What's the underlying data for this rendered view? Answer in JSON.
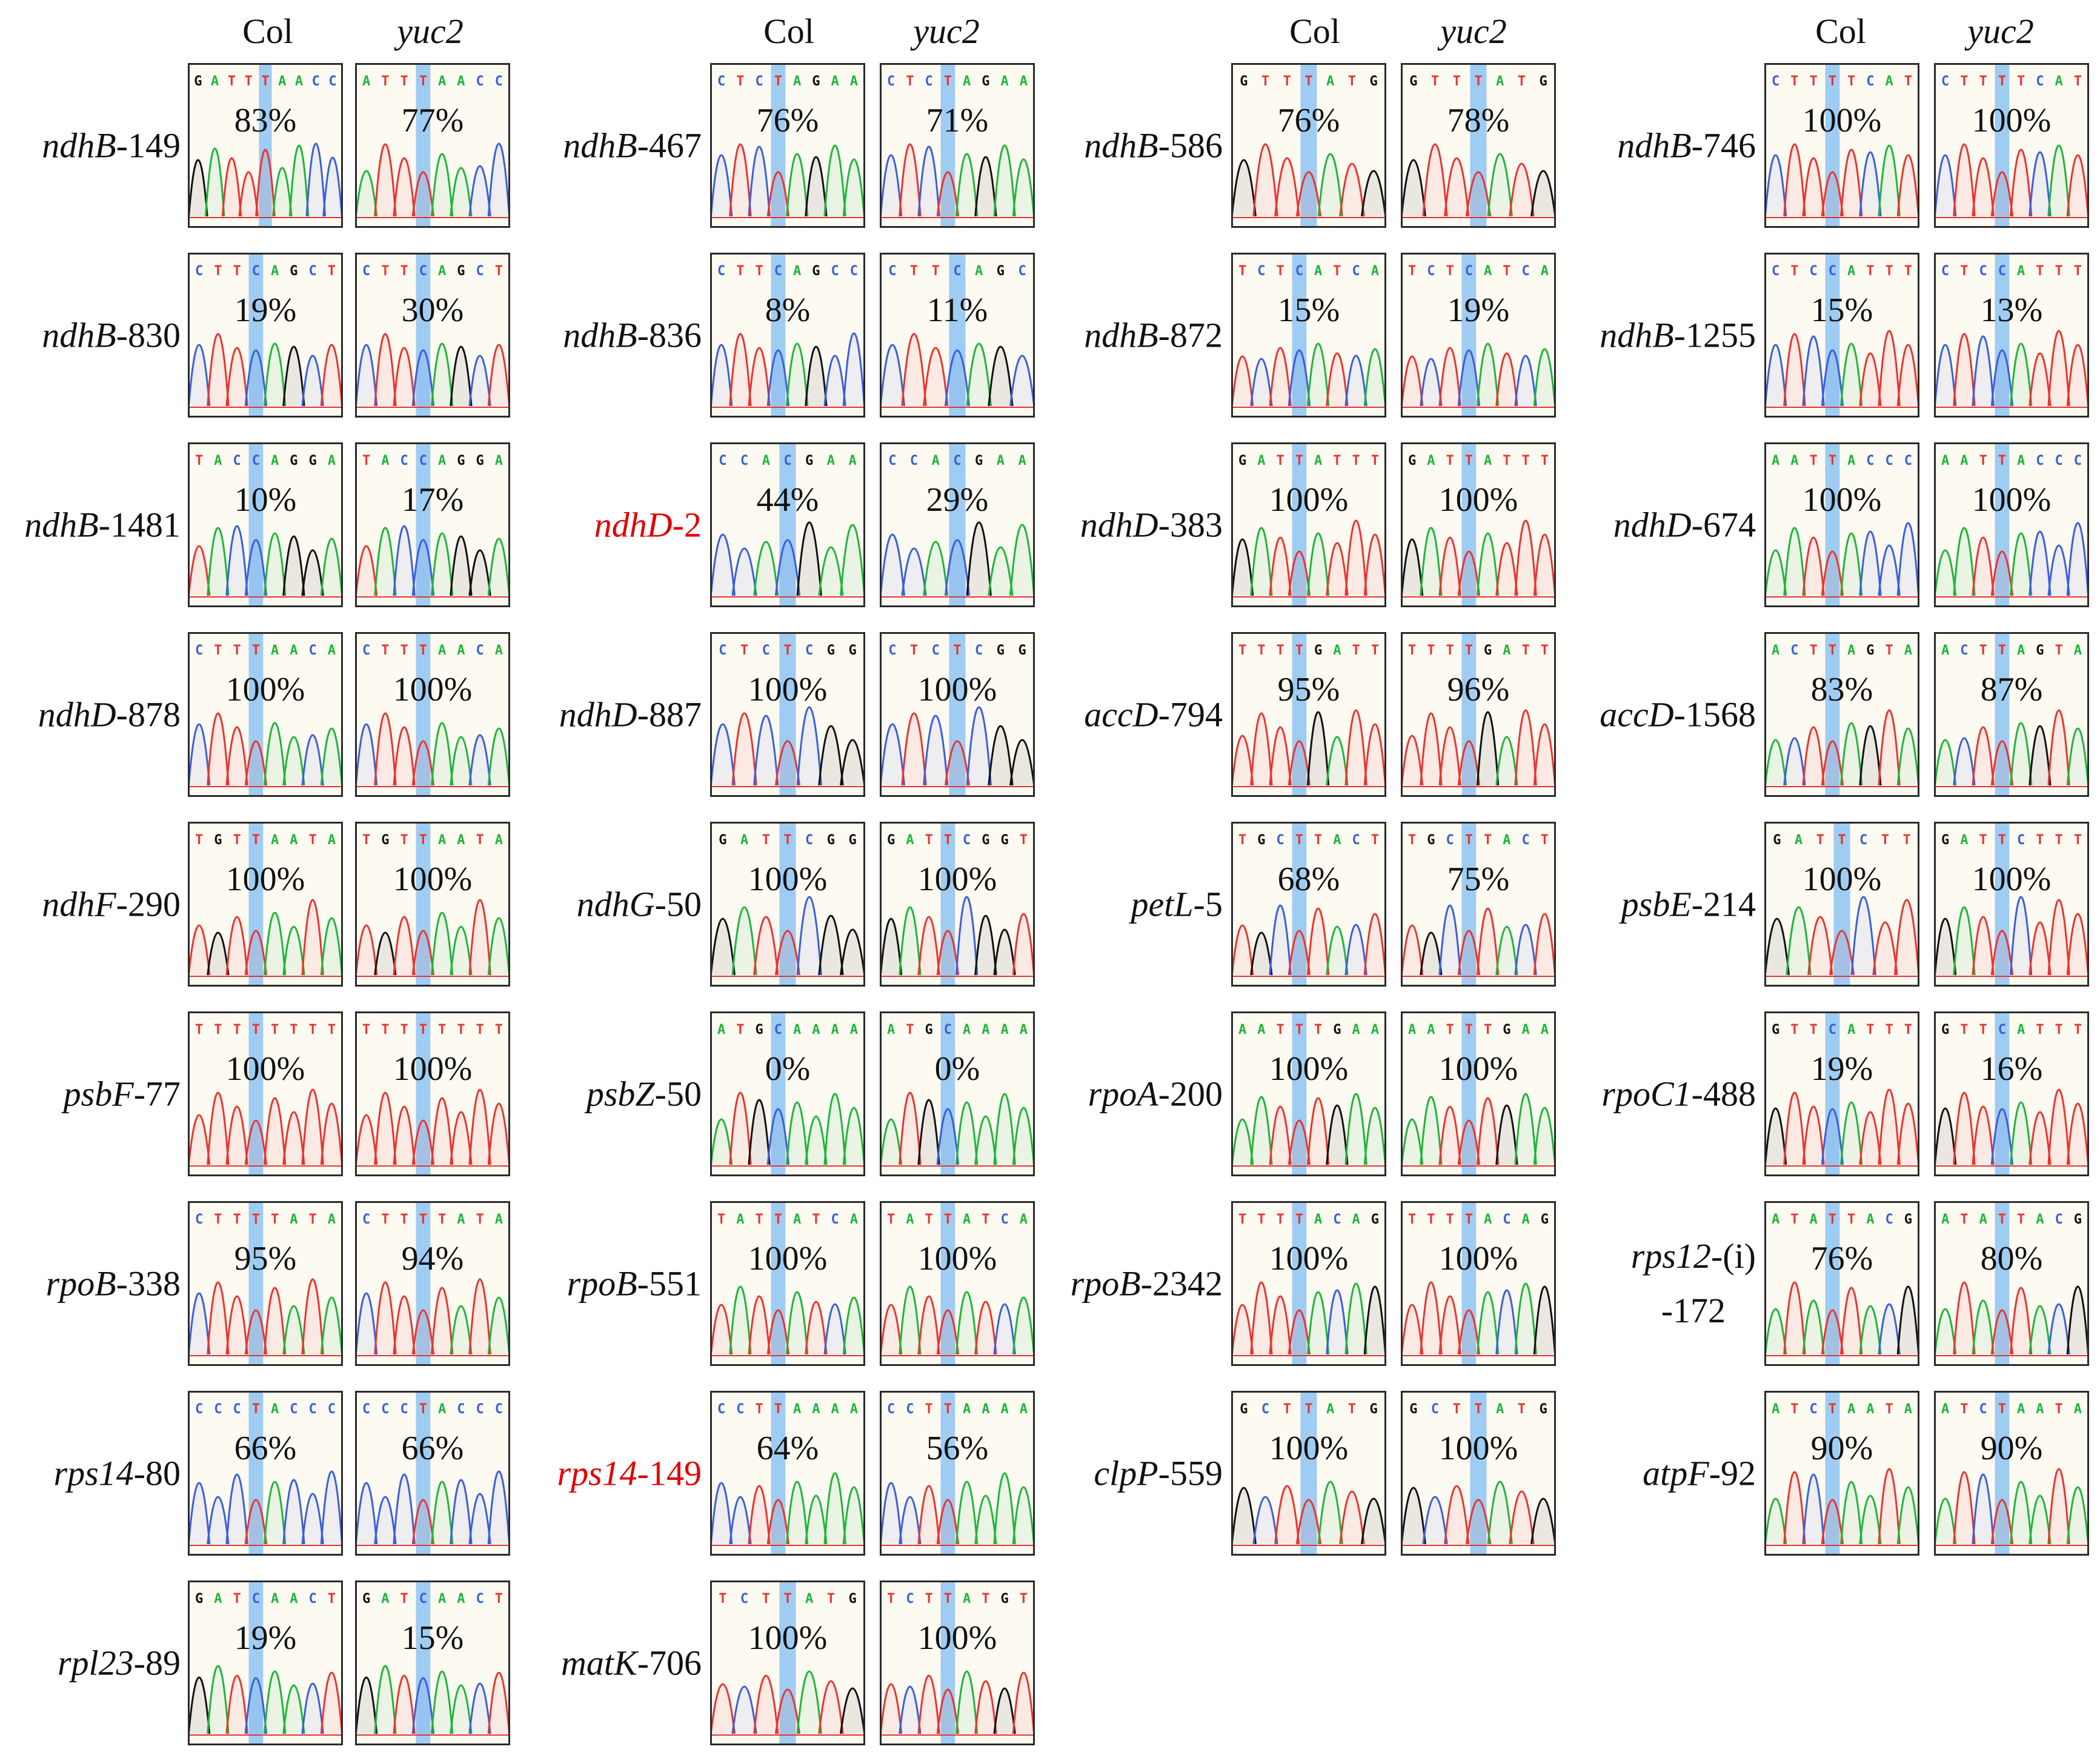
{
  "colors": {
    "A": "#1fb53a",
    "C": "#3a5fdc",
    "G": "#111111",
    "T": "#e8352f",
    "highlight": "#8ec3f2",
    "label_red": "#e00000"
  },
  "headers": {
    "col": "Col",
    "mutant": "yuc2"
  },
  "columns": [
    {
      "rows": [
        {
          "gene": "ndhB",
          "pos": "-149",
          "red": false,
          "col": {
            "seq": "GATTTAACC",
            "pct": "83%"
          },
          "mut": {
            "seq": "ATTTAACC",
            "pct": "77%"
          }
        },
        {
          "gene": "ndhB",
          "pos": "-830",
          "red": false,
          "col": {
            "seq": "CTTCAGCT",
            "pct": "19%"
          },
          "mut": {
            "seq": "CTTCAGCT",
            "pct": "30%"
          }
        },
        {
          "gene": "ndhB",
          "pos": "-1481",
          "red": false,
          "col": {
            "seq": "TACCAGGA",
            "pct": "10%"
          },
          "mut": {
            "seq": "TACCAGGA",
            "pct": "17%"
          }
        },
        {
          "gene": "ndhD",
          "pos": "-878",
          "red": false,
          "col": {
            "seq": "CTTTAACA",
            "pct": "100%"
          },
          "mut": {
            "seq": "CTTTAACA",
            "pct": "100%"
          }
        },
        {
          "gene": "ndhF",
          "pos": "-290",
          "red": false,
          "col": {
            "seq": "TGTTAATA",
            "pct": "100%"
          },
          "mut": {
            "seq": "TGTTAATA",
            "pct": "100%"
          }
        },
        {
          "gene": "psbF",
          "pos": "-77",
          "red": false,
          "col": {
            "seq": "TTTTTTTT",
            "pct": "100%"
          },
          "mut": {
            "seq": "TTTTTTTT",
            "pct": "100%"
          }
        },
        {
          "gene": "rpoB",
          "pos": "-338",
          "red": false,
          "col": {
            "seq": "CTTTTATA",
            "pct": "95%"
          },
          "mut": {
            "seq": "CTTTTATA",
            "pct": "94%"
          }
        },
        {
          "gene": "rps14",
          "pos": "-80",
          "red": false,
          "col": {
            "seq": "CCCTACCC",
            "pct": "66%"
          },
          "mut": {
            "seq": "CCCTACCC",
            "pct": "66%"
          }
        },
        {
          "gene": "rpl23",
          "pos": "-89",
          "red": false,
          "col": {
            "seq": "GATCAACT",
            "pct": "19%"
          },
          "mut": {
            "seq": "GATCAACT",
            "pct": "15%"
          }
        }
      ]
    },
    {
      "rows": [
        {
          "gene": "ndhB",
          "pos": "-467",
          "red": false,
          "col": {
            "seq": "CTCTAGAA",
            "pct": "76%"
          },
          "mut": {
            "seq": "CTCTAGAA",
            "pct": "71%"
          }
        },
        {
          "gene": "ndhB",
          "pos": "-836",
          "red": false,
          "col": {
            "seq": "CTTCAGCC",
            "pct": "8%"
          },
          "mut": {
            "seq": "CTTCAGC",
            "pct": "11%"
          }
        },
        {
          "gene": "ndhD",
          "pos": "-2",
          "red": true,
          "col": {
            "seq": "CCACGAA",
            "pct": "44%"
          },
          "mut": {
            "seq": "CCACGAA",
            "pct": "29%"
          }
        },
        {
          "gene": "ndhD",
          "pos": "-887",
          "red": false,
          "col": {
            "seq": "CTCTCGG",
            "pct": "100%"
          },
          "mut": {
            "seq": "CTCTCGG",
            "pct": "100%"
          }
        },
        {
          "gene": "ndhG",
          "pos": "-50",
          "red": false,
          "col": {
            "seq": "GATTCGG",
            "pct": "100%"
          },
          "mut": {
            "seq": "GATTCGGT",
            "pct": "100%"
          }
        },
        {
          "gene": "psbZ",
          "pos": "-50",
          "red": false,
          "col": {
            "seq": "ATGCAAAA",
            "pct": "0%"
          },
          "mut": {
            "seq": "ATGCAAAA",
            "pct": "0%"
          }
        },
        {
          "gene": "rpoB",
          "pos": "-551",
          "red": false,
          "col": {
            "seq": "TATTATCA",
            "pct": "100%"
          },
          "mut": {
            "seq": "TATTATCA",
            "pct": "100%"
          }
        },
        {
          "gene": "rps14",
          "pos": "-149",
          "red": true,
          "col": {
            "seq": "CCTTAAAA",
            "pct": "64%"
          },
          "mut": {
            "seq": "CCTTAAAA",
            "pct": "56%"
          }
        },
        {
          "gene": "matK",
          "pos": "-706",
          "red": false,
          "col": {
            "seq": "TCTTATG",
            "pct": "100%"
          },
          "mut": {
            "seq": "TCTTATGT",
            "pct": "100%"
          }
        }
      ]
    },
    {
      "rows": [
        {
          "gene": "ndhB",
          "pos": "-586",
          "red": false,
          "col": {
            "seq": "GTTTATG",
            "pct": "76%"
          },
          "mut": {
            "seq": "GTTTATG",
            "pct": "78%"
          }
        },
        {
          "gene": "ndhB",
          "pos": "-872",
          "red": false,
          "col": {
            "seq": "TCTCATCA",
            "pct": "15%"
          },
          "mut": {
            "seq": "TCTCATCA",
            "pct": "19%"
          }
        },
        {
          "gene": "ndhD",
          "pos": "-383",
          "red": false,
          "col": {
            "seq": "GATTATTT",
            "pct": "100%"
          },
          "mut": {
            "seq": "GATTATTT",
            "pct": "100%"
          }
        },
        {
          "gene": "accD",
          "pos": "-794",
          "red": false,
          "col": {
            "seq": "TTTTGATT",
            "pct": "95%"
          },
          "mut": {
            "seq": "TTTTGATT",
            "pct": "96%"
          }
        },
        {
          "gene": "petL",
          "pos": "-5",
          "red": false,
          "col": {
            "seq": "TGCTTACT",
            "pct": "68%"
          },
          "mut": {
            "seq": "TGCTTACT",
            "pct": "75%"
          }
        },
        {
          "gene": "rpoA",
          "pos": "-200",
          "red": false,
          "col": {
            "seq": "AATTTGAA",
            "pct": "100%"
          },
          "mut": {
            "seq": "AATTTGAA",
            "pct": "100%"
          }
        },
        {
          "gene": "rpoB",
          "pos": "-2342",
          "red": false,
          "col": {
            "seq": "TTTTACAG",
            "pct": "100%"
          },
          "mut": {
            "seq": "TTTTACAG",
            "pct": "100%"
          }
        },
        {
          "gene": "clpP",
          "pos": "-559",
          "red": false,
          "col": {
            "seq": "GCTTATG",
            "pct": "100%"
          },
          "mut": {
            "seq": "GCTTATG",
            "pct": "100%"
          }
        }
      ]
    },
    {
      "rows": [
        {
          "gene": "ndhB",
          "pos": "-746",
          "red": false,
          "col": {
            "seq": "CTTTTCAT",
            "pct": "100%"
          },
          "mut": {
            "seq": "CTTTTCAT",
            "pct": "100%"
          }
        },
        {
          "gene": "ndhB",
          "pos": "-1255",
          "red": false,
          "col": {
            "seq": "CTCCATTT",
            "pct": "15%"
          },
          "mut": {
            "seq": "CTCCATTT",
            "pct": "13%"
          }
        },
        {
          "gene": "ndhD",
          "pos": "-674",
          "red": false,
          "col": {
            "seq": "AATTACCC",
            "pct": "100%"
          },
          "mut": {
            "seq": "AATTACCC",
            "pct": "100%"
          }
        },
        {
          "gene": "accD",
          "pos": "-1568",
          "red": false,
          "col": {
            "seq": "ACTTAGTA",
            "pct": "83%"
          },
          "mut": {
            "seq": "ACTTAGTA",
            "pct": "87%"
          }
        },
        {
          "gene": "psbE",
          "pos": "-214",
          "red": false,
          "col": {
            "seq": "GATTCTT",
            "pct": "100%"
          },
          "mut": {
            "seq": "GATTCTTT",
            "pct": "100%"
          }
        },
        {
          "gene": "rpoC1",
          "pos": "-488",
          "red": false,
          "col": {
            "seq": "GTTCATTT",
            "pct": "19%"
          },
          "mut": {
            "seq": "GTTCATTT",
            "pct": "16%"
          }
        },
        {
          "gene": "rps12",
          "pos": "-(i)",
          "pos2": "-172",
          "red": false,
          "col": {
            "seq": "ATATTACG",
            "pct": "76%"
          },
          "mut": {
            "seq": "ATATTACG",
            "pct": "80%"
          }
        },
        {
          "gene": "atpF",
          "pos": "-92",
          "red": false,
          "col": {
            "seq": "ATCTAATA",
            "pct": "90%"
          },
          "mut": {
            "seq": "ATCTAATA",
            "pct": "90%"
          }
        }
      ]
    }
  ]
}
